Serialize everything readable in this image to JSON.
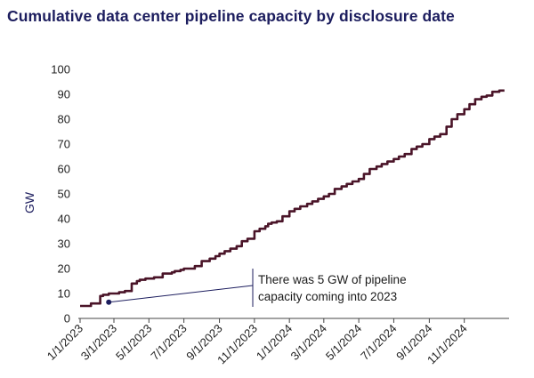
{
  "chart_data": {
    "type": "line",
    "title": "Cumulative data center pipeline capacity by disclosure date",
    "xlabel": "",
    "ylabel": "GW",
    "ylim": [
      0,
      100
    ],
    "yticks": [
      0,
      10,
      20,
      30,
      40,
      50,
      60,
      70,
      80,
      90,
      100
    ],
    "xlim": [
      "2023-01-01",
      "2025-01-15"
    ],
    "xticks": [
      "1/1/2023",
      "3/1/2023",
      "5/1/2023",
      "7/1/2023",
      "9/1/2023",
      "11/1/2023",
      "1/1/2024",
      "3/1/2024",
      "5/1/2024",
      "7/1/2024",
      "9/1/2024",
      "11/1/2024"
    ],
    "xtick_dates": [
      "2023-01-01",
      "2023-03-01",
      "2023-05-01",
      "2023-07-01",
      "2023-09-01",
      "2023-11-01",
      "2024-01-01",
      "2024-03-01",
      "2024-05-01",
      "2024-07-01",
      "2024-09-01",
      "2024-11-01"
    ],
    "grid": false,
    "colors": {
      "line": "#4a1428",
      "title": "#1c1d5e",
      "annotation": "#1c1d5e"
    },
    "series": [
      {
        "step": true,
        "x": [
          "2023-01-01",
          "2023-01-20",
          "2023-02-05",
          "2023-02-10",
          "2023-02-20",
          "2023-03-01",
          "2023-03-10",
          "2023-03-20",
          "2023-04-01",
          "2023-04-10",
          "2023-04-15",
          "2023-04-25",
          "2023-05-10",
          "2023-05-25",
          "2023-06-10",
          "2023-06-15",
          "2023-06-25",
          "2023-07-01",
          "2023-07-20",
          "2023-08-01",
          "2023-08-15",
          "2023-08-25",
          "2023-09-01",
          "2023-09-10",
          "2023-09-20",
          "2023-10-01",
          "2023-10-10",
          "2023-10-20",
          "2023-11-01",
          "2023-11-10",
          "2023-11-20",
          "2023-11-25",
          "2023-12-01",
          "2023-12-10",
          "2023-12-20",
          "2024-01-01",
          "2024-01-10",
          "2024-01-20",
          "2024-02-01",
          "2024-02-10",
          "2024-02-20",
          "2024-03-01",
          "2024-03-10",
          "2024-03-20",
          "2024-04-01",
          "2024-04-10",
          "2024-04-20",
          "2024-05-01",
          "2024-05-10",
          "2024-05-20",
          "2024-06-01",
          "2024-06-10",
          "2024-06-20",
          "2024-07-01",
          "2024-07-10",
          "2024-07-20",
          "2024-08-01",
          "2024-08-10",
          "2024-08-20",
          "2024-09-01",
          "2024-09-10",
          "2024-09-20",
          "2024-10-01",
          "2024-10-10",
          "2024-10-20",
          "2024-11-01",
          "2024-11-10",
          "2024-11-20",
          "2024-12-01",
          "2024-12-10",
          "2024-12-20",
          "2025-01-01",
          "2025-01-10"
        ],
        "values": [
          5,
          6,
          9,
          9.5,
          10,
          10,
          10.5,
          11,
          14,
          15,
          15.5,
          16,
          16.5,
          18,
          18.5,
          19,
          19.5,
          20,
          21,
          23,
          24,
          25,
          26,
          27,
          28,
          29,
          31,
          32,
          35,
          36,
          37,
          38,
          38.5,
          39,
          41,
          43,
          44,
          45,
          46,
          47,
          48,
          49,
          50,
          52,
          53,
          54,
          55,
          56,
          58,
          60,
          61,
          62,
          63,
          64,
          65,
          66,
          68,
          69,
          70,
          72,
          73,
          74,
          77,
          80,
          82,
          84,
          86,
          88,
          89,
          89.5,
          91,
          91.5,
          91.5
        ]
      }
    ],
    "annotation": {
      "text_lines": [
        "There was 5 GW of pipeline",
        "capacity coming into 2023"
      ],
      "marker": {
        "x": "2023-02-20",
        "y": 6.5
      }
    }
  }
}
